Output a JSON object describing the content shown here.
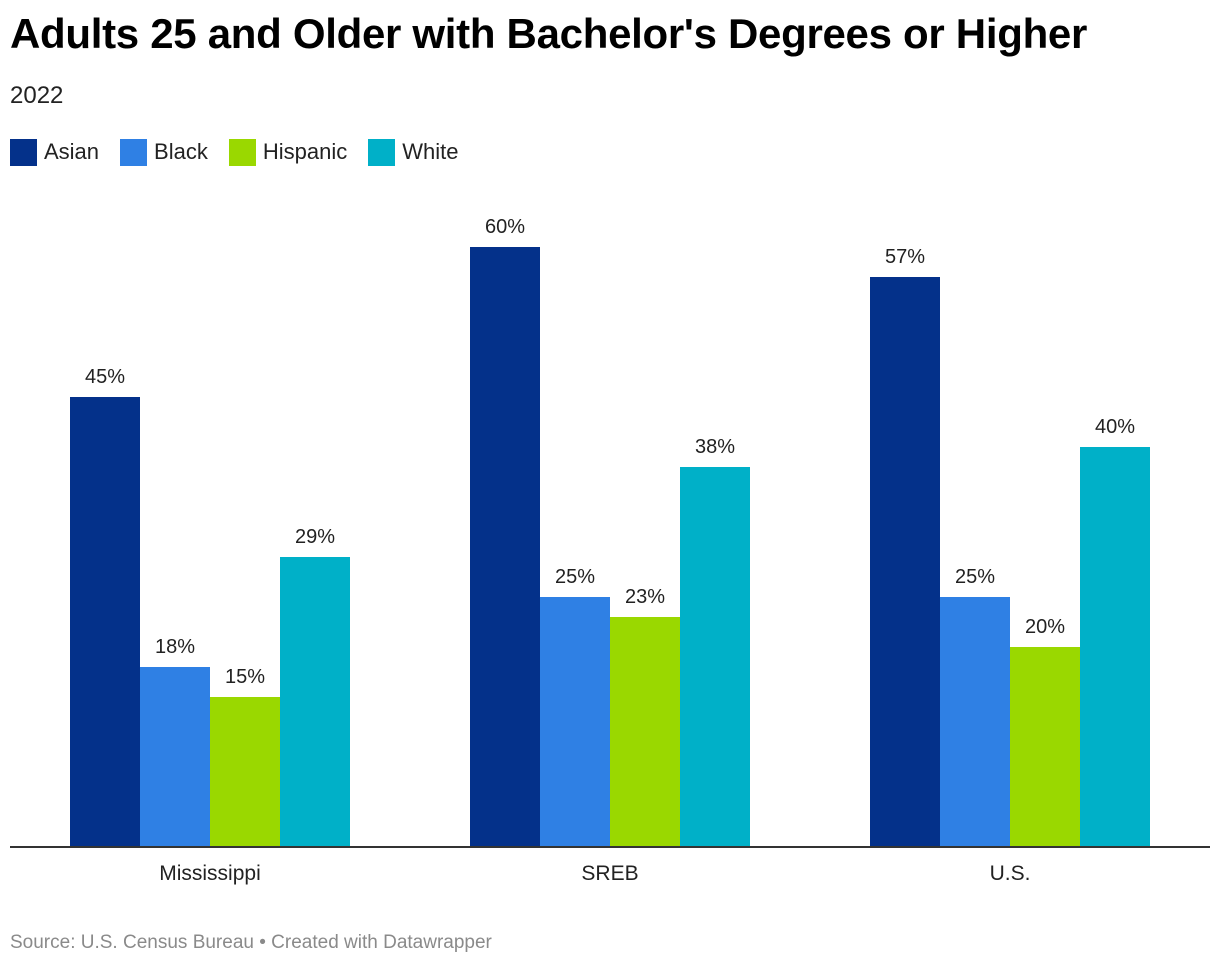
{
  "chart_data": {
    "type": "bar",
    "title": "Adults 25 and Older with Bachelor's Degrees or Higher",
    "subtitle": "2022",
    "categories": [
      "Mississippi",
      "SREB",
      "U.S."
    ],
    "series": [
      {
        "name": "Asian",
        "values": [
          45,
          60,
          57
        ],
        "labels": [
          "45%",
          "60%",
          "57%"
        ],
        "color": "#04318a"
      },
      {
        "name": "Black",
        "values": [
          18,
          25,
          25
        ],
        "labels": [
          "18%",
          "25%",
          "25%"
        ],
        "color": "#2f80e4"
      },
      {
        "name": "Hispanic",
        "values": [
          15,
          23,
          20
        ],
        "labels": [
          "15%",
          "23%",
          "20%"
        ],
        "color": "#9ad800"
      },
      {
        "name": "White",
        "values": [
          29,
          38,
          40
        ],
        "labels": [
          "29%",
          "38%",
          "40%"
        ],
        "color": "#00b0c8"
      }
    ],
    "ylim": [
      0,
      60
    ],
    "grid": false,
    "legend": "top-left",
    "source": "Source: U.S. Census Bureau • Created with Datawrapper"
  }
}
